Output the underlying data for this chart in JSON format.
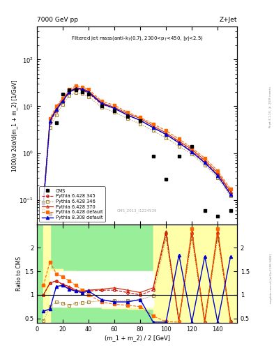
{
  "title_top": "7000 GeV pp",
  "title_right": "Z+Jet",
  "plot_title": "Filtered jet mass(anti-k_{T}(0.7), 2300<p_{T}<450, |y|<2.5)",
  "ylabel_main": "1000/σ 2dσ/d(m_1 + m_2) [1/GeV]",
  "ylabel_ratio": "Ratio to CMS",
  "xlabel": "(m_1 + m_2) / 2 [GeV]",
  "watermark": "CMS_2013_I1224539",
  "cms_x": [
    5,
    10,
    15,
    20,
    25,
    30,
    35,
    40,
    50,
    60,
    70,
    80,
    90,
    100,
    110,
    120,
    130,
    140,
    150
  ],
  "cms_y": [
    0.09,
    0.05,
    4.5,
    18,
    22,
    22,
    20,
    18,
    10,
    8,
    6,
    5,
    0.85,
    0.28,
    0.85,
    1.4,
    0.06,
    0.045,
    0.06
  ],
  "py345_x": [
    5,
    10,
    15,
    20,
    25,
    30,
    35,
    40,
    50,
    60,
    70,
    80,
    90,
    100,
    110,
    120,
    130,
    140,
    150
  ],
  "py345_y": [
    0.09,
    4.5,
    8,
    13,
    20,
    23,
    22,
    19,
    11,
    9,
    6.5,
    5.0,
    3.5,
    2.5,
    1.7,
    1.1,
    0.65,
    0.35,
    0.14
  ],
  "py346_x": [
    5,
    10,
    15,
    20,
    25,
    30,
    35,
    40,
    50,
    60,
    70,
    80,
    90,
    100,
    110,
    120,
    130,
    140,
    150
  ],
  "py346_y": [
    0.06,
    3.5,
    6.5,
    11,
    17,
    19.5,
    18.5,
    16,
    9.5,
    7.5,
    5.5,
    4.2,
    3.0,
    2.1,
    1.4,
    0.95,
    0.55,
    0.3,
    0.12
  ],
  "py370_x": [
    5,
    10,
    15,
    20,
    25,
    30,
    35,
    40,
    50,
    60,
    70,
    80,
    90,
    100,
    110,
    120,
    130,
    140,
    150
  ],
  "py370_y": [
    0.09,
    5.0,
    9,
    14,
    21,
    25,
    24,
    21,
    12,
    9.5,
    7.0,
    5.5,
    3.8,
    2.7,
    1.8,
    1.2,
    0.7,
    0.38,
    0.15
  ],
  "pydef_x": [
    5,
    10,
    15,
    20,
    25,
    30,
    35,
    40,
    50,
    60,
    70,
    80,
    90,
    100,
    110,
    120,
    130,
    140,
    150
  ],
  "pydef_y": [
    0.09,
    5.5,
    10,
    15,
    23,
    27,
    26,
    23,
    13,
    10.5,
    7.5,
    5.8,
    4.2,
    3.0,
    2.0,
    1.3,
    0.78,
    0.42,
    0.17
  ],
  "py8_x": [
    5,
    10,
    15,
    20,
    25,
    30,
    35,
    40,
    50,
    60,
    70,
    80,
    90,
    100,
    110,
    120,
    130,
    140,
    150
  ],
  "py8_y": [
    0.085,
    4.8,
    8.5,
    13,
    20,
    24,
    23,
    20,
    11.5,
    9.0,
    6.5,
    5.0,
    3.5,
    2.5,
    1.65,
    1.05,
    0.62,
    0.33,
    0.13
  ],
  "ratio_x": [
    5,
    10,
    15,
    20,
    25,
    30,
    35,
    40,
    50,
    60,
    70,
    80,
    90,
    100,
    110,
    120,
    130,
    140,
    150
  ],
  "ratio_py345": [
    1.0,
    1.25,
    1.3,
    1.22,
    1.15,
    1.08,
    1.05,
    1.08,
    1.1,
    1.1,
    1.05,
    1.0,
    1.1,
    2.3,
    0.43,
    2.3,
    0.42,
    2.3,
    0.43
  ],
  "ratio_py346": [
    0.45,
    0.75,
    0.85,
    0.82,
    0.78,
    0.82,
    0.83,
    0.85,
    0.87,
    0.88,
    0.88,
    0.9,
    0.98,
    2.2,
    0.42,
    2.2,
    0.4,
    2.2,
    0.4
  ],
  "ratio_py370": [
    1.0,
    1.25,
    1.3,
    1.22,
    1.18,
    1.1,
    1.08,
    1.1,
    1.12,
    1.15,
    1.1,
    1.05,
    1.15,
    2.35,
    0.45,
    2.35,
    0.44,
    2.35,
    0.45
  ],
  "ratio_pydef": [
    1.2,
    1.7,
    1.45,
    1.38,
    1.3,
    1.2,
    1.1,
    1.0,
    0.85,
    0.8,
    0.78,
    0.75,
    0.55,
    0.43,
    0.42,
    2.4,
    0.38,
    2.4,
    0.38
  ],
  "ratio_py8": [
    0.65,
    0.7,
    1.18,
    1.2,
    1.12,
    1.08,
    1.05,
    1.08,
    0.9,
    0.85,
    0.85,
    0.9,
    0.42,
    0.42,
    1.85,
    0.42,
    1.82,
    0.42,
    1.82
  ],
  "xlim": [
    0,
    155
  ],
  "ylim_main": [
    0.03,
    500
  ],
  "ylim_ratio": [
    0.4,
    2.5
  ],
  "yticks_ratio_left": [
    0.5,
    1.0,
    1.5,
    2.0,
    2.5
  ],
  "yticks_ratio_right": [
    0.5,
    1.0,
    1.5,
    2.0
  ],
  "color_345": "#cc0000",
  "color_346": "#aa8833",
  "color_370": "#cc2200",
  "color_def": "#ff6600",
  "color_py8": "#0000cc",
  "green_color": "#99ee99",
  "yellow_color": "#ffffaa"
}
